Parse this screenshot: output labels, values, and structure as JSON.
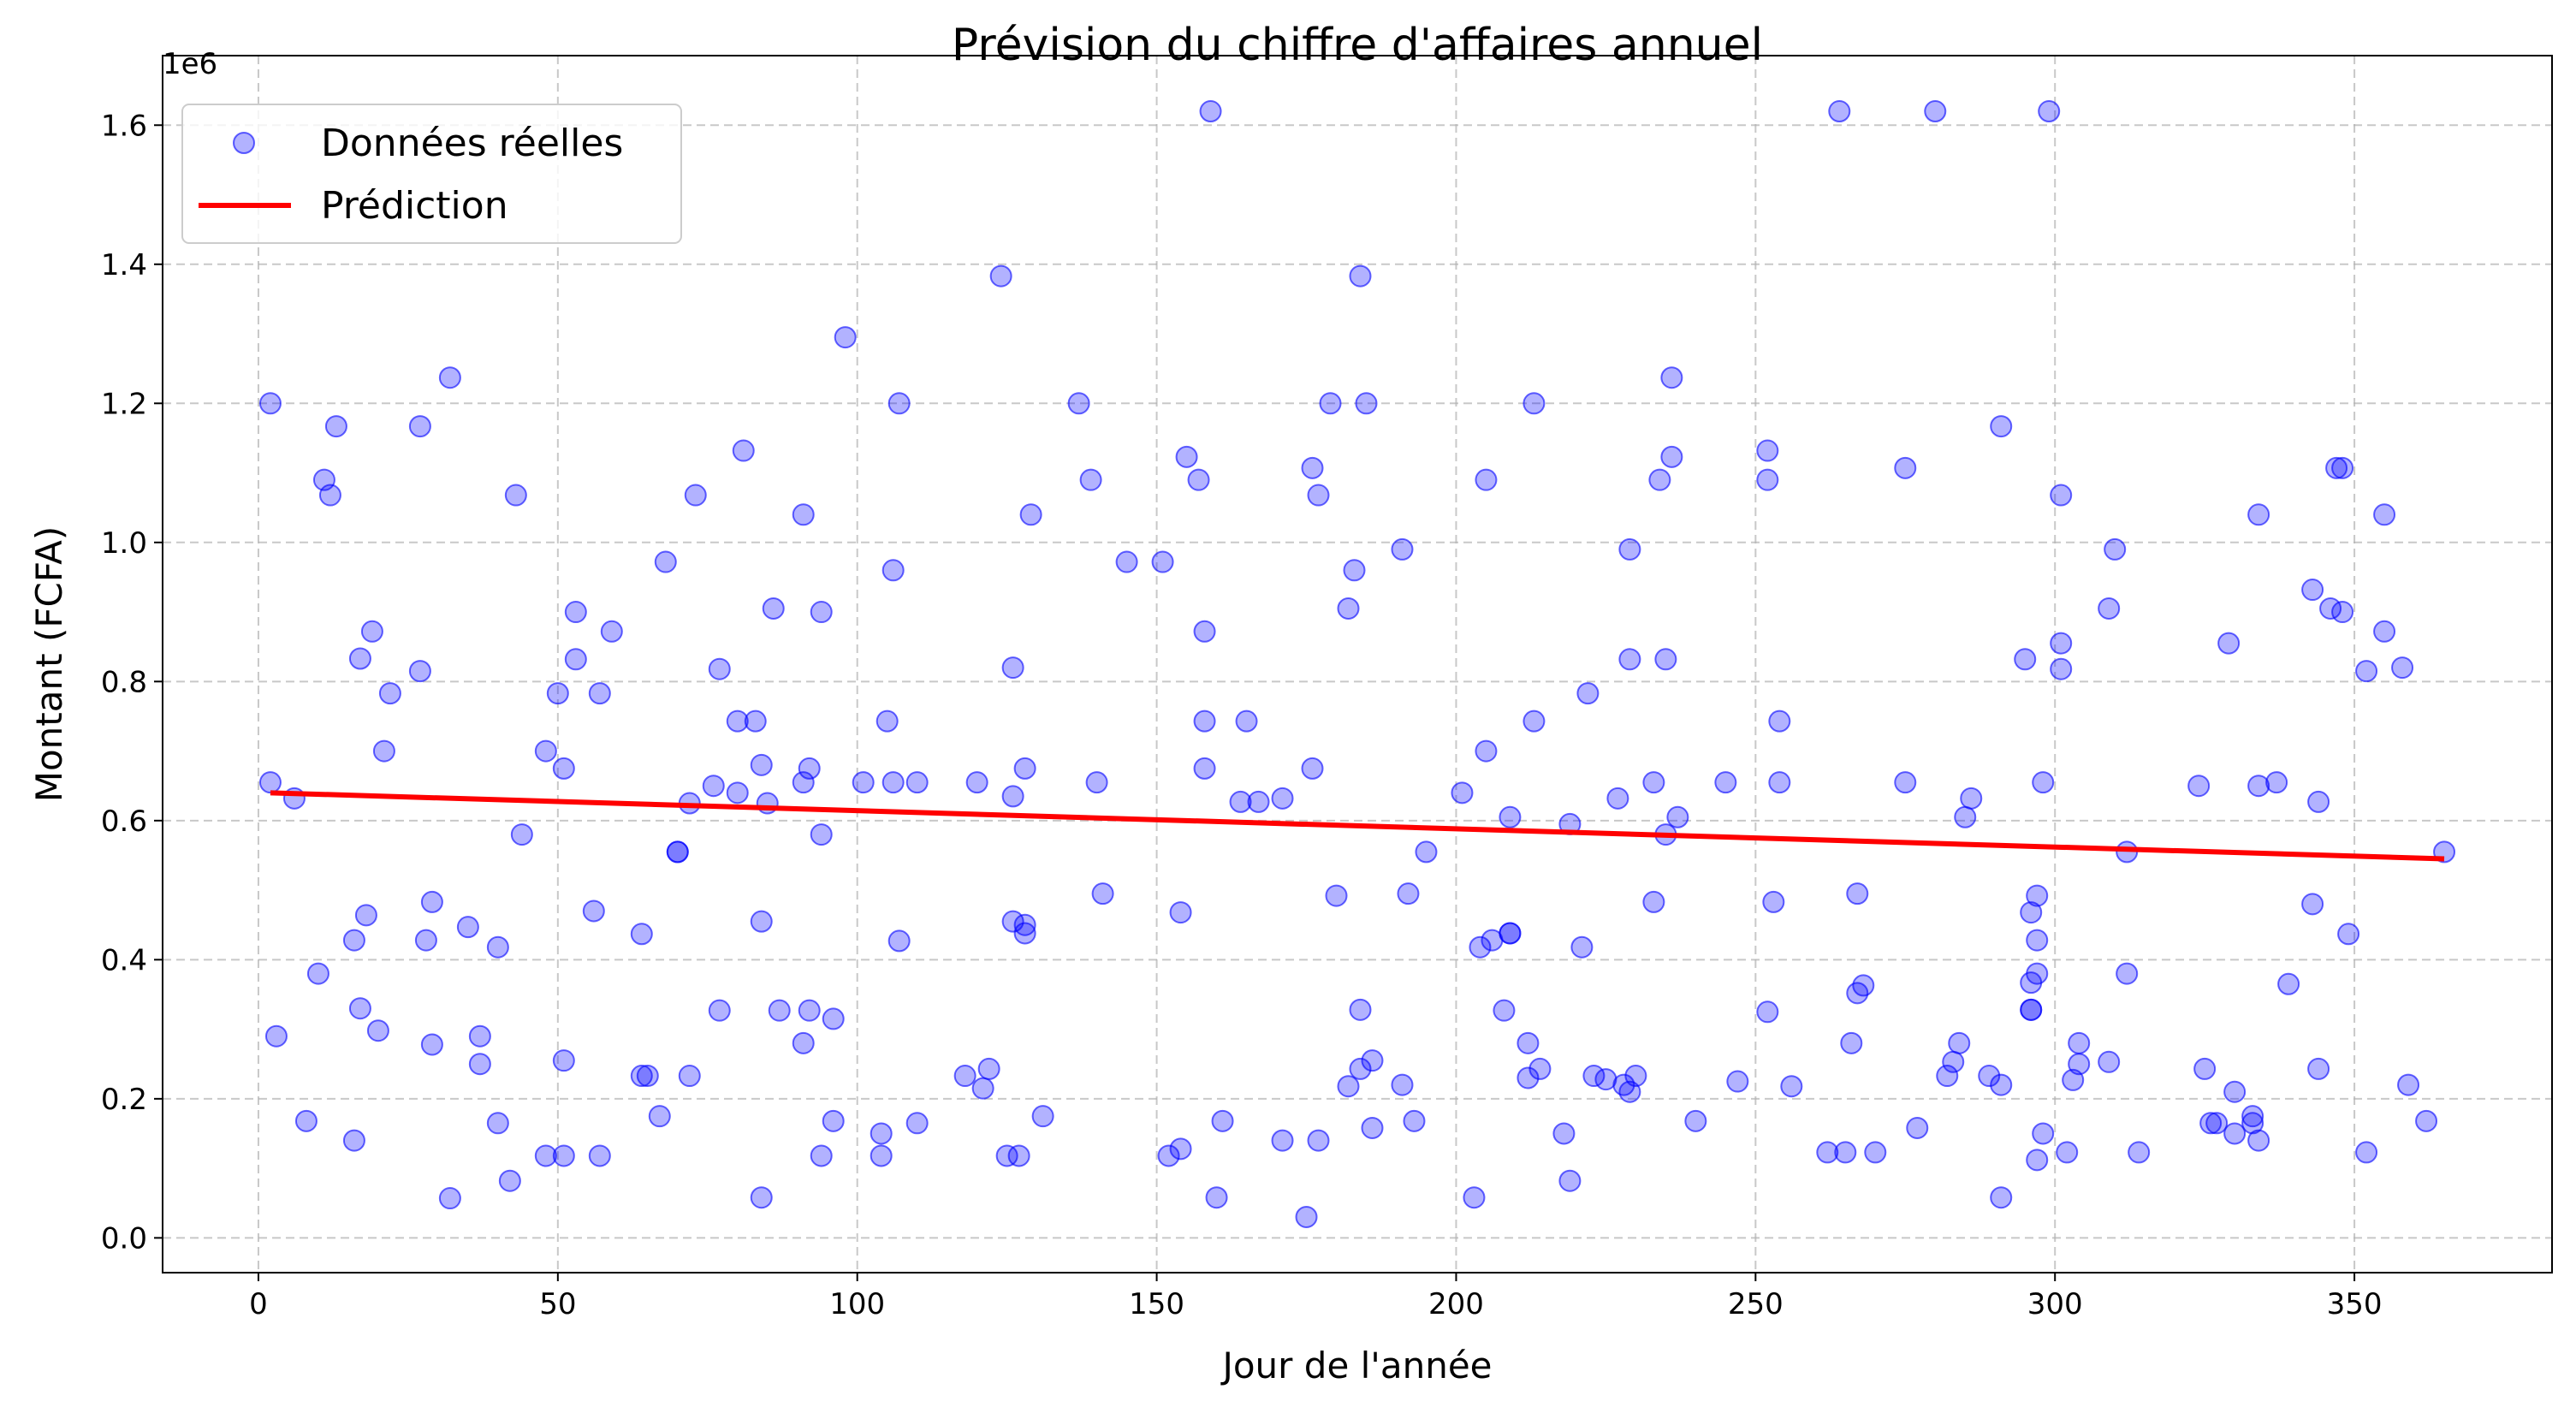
{
  "chart_data": {
    "type": "scatter",
    "title": "Prévision du chiffre d'affaires annuel",
    "xlabel": "Jour de l'année",
    "ylabel": "Montant (FCFA)",
    "y_offset_label": "1e6",
    "xlim": [
      -16,
      383
    ],
    "ylim": [
      -50000,
      1700000
    ],
    "xticks": [
      0,
      50,
      100,
      150,
      200,
      250,
      300,
      350
    ],
    "xtick_labels": [
      "0",
      "50",
      "100",
      "150",
      "200",
      "250",
      "300",
      "350"
    ],
    "yticks": [
      0,
      200000,
      400000,
      600000,
      800000,
      1000000,
      1200000,
      1400000,
      1600000
    ],
    "ytick_labels": [
      "0.0",
      "0.2",
      "0.4",
      "0.6",
      "0.8",
      "1.0",
      "1.2",
      "1.4",
      "1.6"
    ],
    "grid": true,
    "legend_position": "top-left",
    "colors": {
      "points": "#0000ff",
      "prediction": "#ff0000"
    },
    "series": [
      {
        "name": "Données réelles",
        "kind": "scatter",
        "points": [
          [
            2,
            1200000
          ],
          [
            2,
            655000
          ],
          [
            3,
            290000
          ],
          [
            6,
            632000
          ],
          [
            8,
            168000
          ],
          [
            10,
            380000
          ],
          [
            11,
            1090000
          ],
          [
            12,
            1068000
          ],
          [
            13,
            1167000
          ],
          [
            16,
            140000
          ],
          [
            16,
            428000
          ],
          [
            17,
            330000
          ],
          [
            17,
            833000
          ],
          [
            18,
            464000
          ],
          [
            19,
            872000
          ],
          [
            20,
            298000
          ],
          [
            21,
            700000
          ],
          [
            22,
            783000
          ],
          [
            27,
            1167000
          ],
          [
            27,
            815000
          ],
          [
            28,
            428000
          ],
          [
            29,
            278000
          ],
          [
            29,
            483000
          ],
          [
            32,
            1237000
          ],
          [
            32,
            57000
          ],
          [
            35,
            447000
          ],
          [
            37,
            290000
          ],
          [
            37,
            250000
          ],
          [
            40,
            418000
          ],
          [
            40,
            165000
          ],
          [
            42,
            82000
          ],
          [
            43,
            1068000
          ],
          [
            44,
            580000
          ],
          [
            48,
            700000
          ],
          [
            48,
            118000
          ],
          [
            50,
            783000
          ],
          [
            51,
            675000
          ],
          [
            51,
            255000
          ],
          [
            51,
            118000
          ],
          [
            53,
            900000
          ],
          [
            53,
            832000
          ],
          [
            56,
            470000
          ],
          [
            57,
            783000
          ],
          [
            57,
            118000
          ],
          [
            59,
            872000
          ],
          [
            64,
            437000
          ],
          [
            64,
            233000
          ],
          [
            65,
            233000
          ],
          [
            67,
            175000
          ],
          [
            68,
            972000
          ],
          [
            70,
            555000
          ],
          [
            70,
            555000
          ],
          [
            72,
            625000
          ],
          [
            72,
            233000
          ],
          [
            73,
            1068000
          ],
          [
            76,
            650000
          ],
          [
            77,
            818000
          ],
          [
            77,
            327000
          ],
          [
            80,
            743000
          ],
          [
            80,
            640000
          ],
          [
            81,
            1132000
          ],
          [
            83,
            743000
          ],
          [
            84,
            680000
          ],
          [
            84,
            455000
          ],
          [
            84,
            58000
          ],
          [
            85,
            625000
          ],
          [
            86,
            905000
          ],
          [
            87,
            327000
          ],
          [
            91,
            1040000
          ],
          [
            91,
            655000
          ],
          [
            91,
            280000
          ],
          [
            92,
            675000
          ],
          [
            92,
            327000
          ],
          [
            94,
            900000
          ],
          [
            94,
            580000
          ],
          [
            94,
            118000
          ],
          [
            96,
            315000
          ],
          [
            96,
            168000
          ],
          [
            98,
            1295000
          ],
          [
            101,
            655000
          ],
          [
            104,
            150000
          ],
          [
            104,
            118000
          ],
          [
            105,
            743000
          ],
          [
            106,
            960000
          ],
          [
            106,
            655000
          ],
          [
            107,
            1200000
          ],
          [
            107,
            427000
          ],
          [
            110,
            655000
          ],
          [
            110,
            165000
          ],
          [
            118,
            233000
          ],
          [
            120,
            655000
          ],
          [
            121,
            215000
          ],
          [
            122,
            243000
          ],
          [
            124,
            1383000
          ],
          [
            125,
            118000
          ],
          [
            126,
            820000
          ],
          [
            126,
            635000
          ],
          [
            126,
            455000
          ],
          [
            127,
            118000
          ],
          [
            128,
            675000
          ],
          [
            128,
            450000
          ],
          [
            128,
            438000
          ],
          [
            129,
            1040000
          ],
          [
            131,
            175000
          ],
          [
            137,
            1200000
          ],
          [
            139,
            1090000
          ],
          [
            140,
            655000
          ],
          [
            141,
            495000
          ],
          [
            145,
            972000
          ],
          [
            151,
            972000
          ],
          [
            152,
            118000
          ],
          [
            154,
            468000
          ],
          [
            154,
            128000
          ],
          [
            155,
            1123000
          ],
          [
            157,
            1090000
          ],
          [
            158,
            872000
          ],
          [
            158,
            743000
          ],
          [
            158,
            675000
          ],
          [
            159,
            1620000
          ],
          [
            160,
            58000
          ],
          [
            161,
            168000
          ],
          [
            164,
            627000
          ],
          [
            165,
            743000
          ],
          [
            167,
            627000
          ],
          [
            171,
            632000
          ],
          [
            171,
            140000
          ],
          [
            176,
            1107000
          ],
          [
            176,
            675000
          ],
          [
            177,
            1068000
          ],
          [
            177,
            140000
          ],
          [
            175,
            30000
          ],
          [
            179,
            1200000
          ],
          [
            180,
            492000
          ],
          [
            182,
            905000
          ],
          [
            182,
            218000
          ],
          [
            183,
            960000
          ],
          [
            184,
            1383000
          ],
          [
            184,
            328000
          ],
          [
            184,
            243000
          ],
          [
            185,
            1200000
          ],
          [
            186,
            255000
          ],
          [
            186,
            158000
          ],
          [
            191,
            990000
          ],
          [
            191,
            220000
          ],
          [
            192,
            495000
          ],
          [
            193,
            168000
          ],
          [
            195,
            555000
          ],
          [
            201,
            640000
          ],
          [
            203,
            58000
          ],
          [
            204,
            418000
          ],
          [
            205,
            1090000
          ],
          [
            205,
            700000
          ],
          [
            206,
            428000
          ],
          [
            208,
            327000
          ],
          [
            209,
            605000
          ],
          [
            209,
            438000
          ],
          [
            209,
            438000
          ],
          [
            212,
            280000
          ],
          [
            212,
            230000
          ],
          [
            213,
            1200000
          ],
          [
            213,
            743000
          ],
          [
            214,
            243000
          ],
          [
            218,
            150000
          ],
          [
            219,
            595000
          ],
          [
            219,
            82000
          ],
          [
            221,
            418000
          ],
          [
            222,
            783000
          ],
          [
            223,
            233000
          ],
          [
            225,
            228000
          ],
          [
            227,
            632000
          ],
          [
            228,
            220000
          ],
          [
            229,
            990000
          ],
          [
            229,
            832000
          ],
          [
            229,
            210000
          ],
          [
            230,
            233000
          ],
          [
            233,
            655000
          ],
          [
            233,
            483000
          ],
          [
            234,
            1090000
          ],
          [
            235,
            832000
          ],
          [
            235,
            580000
          ],
          [
            236,
            1237000
          ],
          [
            236,
            1123000
          ],
          [
            237,
            605000
          ],
          [
            240,
            168000
          ],
          [
            245,
            655000
          ],
          [
            247,
            225000
          ],
          [
            252,
            1132000
          ],
          [
            252,
            1090000
          ],
          [
            252,
            325000
          ],
          [
            253,
            483000
          ],
          [
            254,
            743000
          ],
          [
            254,
            655000
          ],
          [
            256,
            218000
          ],
          [
            262,
            123000
          ],
          [
            264,
            1620000
          ],
          [
            265,
            123000
          ],
          [
            266,
            280000
          ],
          [
            267,
            495000
          ],
          [
            267,
            352000
          ],
          [
            268,
            363000
          ],
          [
            270,
            123000
          ],
          [
            275,
            1107000
          ],
          [
            275,
            655000
          ],
          [
            277,
            158000
          ],
          [
            280,
            1620000
          ],
          [
            282,
            233000
          ],
          [
            283,
            253000
          ],
          [
            284,
            280000
          ],
          [
            285,
            605000
          ],
          [
            286,
            632000
          ],
          [
            289,
            233000
          ],
          [
            291,
            1167000
          ],
          [
            291,
            220000
          ],
          [
            291,
            58000
          ],
          [
            295,
            832000
          ],
          [
            296,
            468000
          ],
          [
            296,
            367000
          ],
          [
            296,
            328000
          ],
          [
            296,
            328000
          ],
          [
            297,
            492000
          ],
          [
            297,
            428000
          ],
          [
            297,
            380000
          ],
          [
            297,
            112000
          ],
          [
            298,
            655000
          ],
          [
            298,
            150000
          ],
          [
            299,
            1620000
          ],
          [
            301,
            1068000
          ],
          [
            301,
            855000
          ],
          [
            301,
            818000
          ],
          [
            302,
            123000
          ],
          [
            303,
            227000
          ],
          [
            304,
            280000
          ],
          [
            304,
            250000
          ],
          [
            309,
            905000
          ],
          [
            309,
            253000
          ],
          [
            310,
            990000
          ],
          [
            312,
            555000
          ],
          [
            312,
            380000
          ],
          [
            314,
            123000
          ],
          [
            324,
            650000
          ],
          [
            325,
            243000
          ],
          [
            326,
            165000
          ],
          [
            327,
            165000
          ],
          [
            329,
            855000
          ],
          [
            330,
            210000
          ],
          [
            330,
            150000
          ],
          [
            333,
            175000
          ],
          [
            333,
            165000
          ],
          [
            334,
            1040000
          ],
          [
            334,
            650000
          ],
          [
            334,
            140000
          ],
          [
            337,
            655000
          ],
          [
            339,
            365000
          ],
          [
            343,
            932000
          ],
          [
            343,
            480000
          ],
          [
            344,
            627000
          ],
          [
            344,
            243000
          ],
          [
            346,
            905000
          ],
          [
            347,
            1107000
          ],
          [
            348,
            1107000
          ],
          [
            348,
            900000
          ],
          [
            349,
            437000
          ],
          [
            352,
            815000
          ],
          [
            352,
            123000
          ],
          [
            355,
            1040000
          ],
          [
            355,
            872000
          ],
          [
            358,
            820000
          ],
          [
            359,
            220000
          ],
          [
            362,
            168000
          ],
          [
            365,
            555000
          ]
        ]
      },
      {
        "name": "Prédiction",
        "kind": "line",
        "points": [
          [
            2,
            640000
          ],
          [
            365,
            545000
          ]
        ]
      }
    ]
  }
}
